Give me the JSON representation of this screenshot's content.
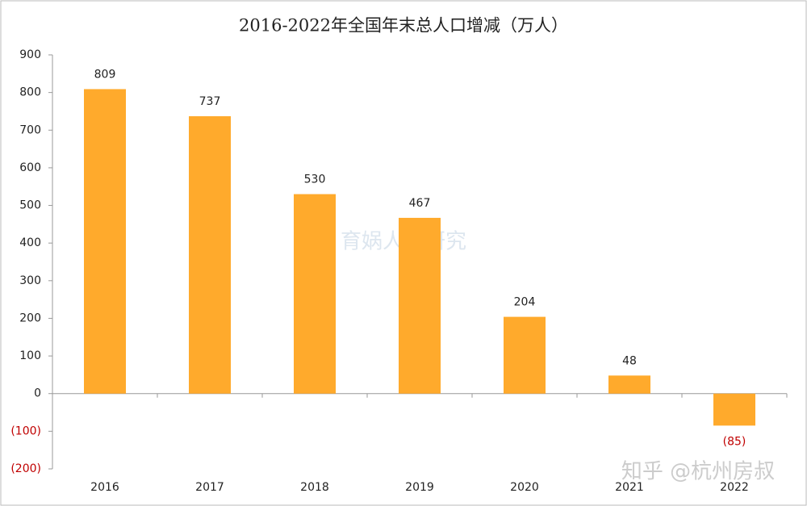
{
  "chart_data": {
    "type": "bar",
    "title": "2016-2022年全国年末总人口增减（万人）",
    "categories": [
      "2016",
      "2017",
      "2018",
      "2019",
      "2020",
      "2021",
      "2022"
    ],
    "values": [
      809,
      737,
      530,
      467,
      204,
      48,
      -85
    ],
    "value_labels": [
      "809",
      "737",
      "530",
      "467",
      "204",
      "48",
      "(85)"
    ],
    "color": "#FFAA2C",
    "negative_label_color": "#C00000",
    "ylim": [
      -200,
      900
    ],
    "yticks": [
      {
        "value": -200,
        "label": "(200)"
      },
      {
        "value": -100,
        "label": "(100)"
      },
      0,
      100,
      200,
      300,
      400,
      500,
      600,
      700,
      800,
      900
    ],
    "grid": false,
    "watermarks": [
      "育娲人口研究",
      "知乎 @杭州房叔"
    ]
  }
}
